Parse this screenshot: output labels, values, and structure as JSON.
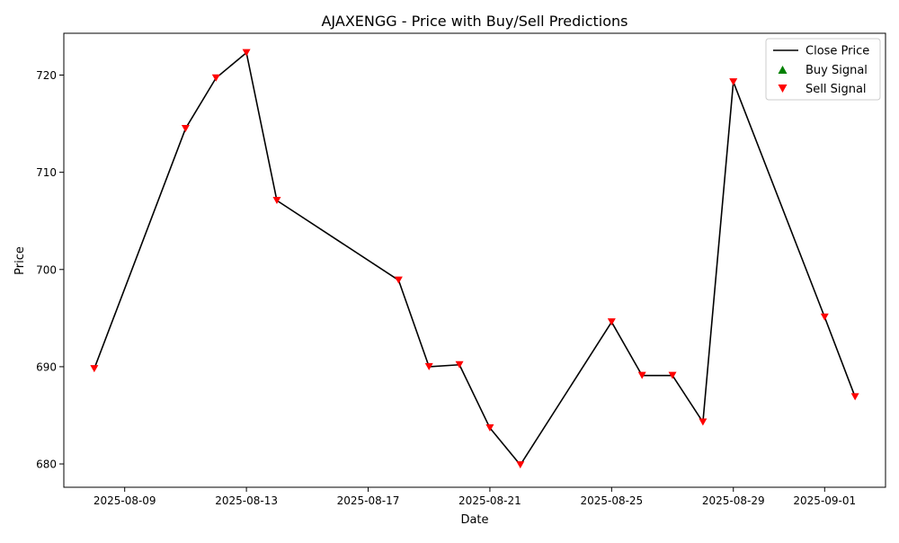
{
  "chart_data": {
    "type": "line",
    "title": "AJAXENGG - Price with Buy/Sell Predictions",
    "xlabel": "Date",
    "ylabel": "Price",
    "x_ticks": [
      "2025-08-09",
      "2025-08-13",
      "2025-08-17",
      "2025-08-21",
      "2025-08-25",
      "2025-08-29",
      "2025-09-01"
    ],
    "y_ticks": [
      680,
      690,
      700,
      710,
      720
    ],
    "xlim": [
      "2025-08-07",
      "2025-09-03"
    ],
    "ylim": [
      677.6,
      724.3
    ],
    "legend_position": "top-right",
    "series": [
      {
        "name": "Close Price",
        "color": "#000000",
        "points": [
          {
            "x": "2025-08-08",
            "y": 689.8
          },
          {
            "x": "2025-08-11",
            "y": 714.5
          },
          {
            "x": "2025-08-12",
            "y": 719.7
          },
          {
            "x": "2025-08-13",
            "y": 722.3
          },
          {
            "x": "2025-08-14",
            "y": 707.1
          },
          {
            "x": "2025-08-18",
            "y": 698.9
          },
          {
            "x": "2025-08-19",
            "y": 690.0
          },
          {
            "x": "2025-08-20",
            "y": 690.2
          },
          {
            "x": "2025-08-21",
            "y": 683.7
          },
          {
            "x": "2025-08-22",
            "y": 679.9
          },
          {
            "x": "2025-08-25",
            "y": 694.6
          },
          {
            "x": "2025-08-26",
            "y": 689.1
          },
          {
            "x": "2025-08-27",
            "y": 689.1
          },
          {
            "x": "2025-08-28",
            "y": 684.3
          },
          {
            "x": "2025-08-29",
            "y": 719.3
          },
          {
            "x": "2025-09-01",
            "y": 695.1
          },
          {
            "x": "2025-09-02",
            "y": 686.9
          }
        ]
      },
      {
        "name": "Buy Signal",
        "color": "#008000",
        "marker": "triangle-up",
        "points": []
      },
      {
        "name": "Sell Signal",
        "color": "#ff0000",
        "marker": "triangle-down",
        "points": [
          {
            "x": "2025-08-08",
            "y": 689.8
          },
          {
            "x": "2025-08-11",
            "y": 714.5
          },
          {
            "x": "2025-08-12",
            "y": 719.7
          },
          {
            "x": "2025-08-13",
            "y": 722.3
          },
          {
            "x": "2025-08-14",
            "y": 707.1
          },
          {
            "x": "2025-08-18",
            "y": 698.9
          },
          {
            "x": "2025-08-19",
            "y": 690.0
          },
          {
            "x": "2025-08-20",
            "y": 690.2
          },
          {
            "x": "2025-08-21",
            "y": 683.7
          },
          {
            "x": "2025-08-22",
            "y": 679.9
          },
          {
            "x": "2025-08-25",
            "y": 694.6
          },
          {
            "x": "2025-08-26",
            "y": 689.1
          },
          {
            "x": "2025-08-27",
            "y": 689.1
          },
          {
            "x": "2025-08-28",
            "y": 684.3
          },
          {
            "x": "2025-08-29",
            "y": 719.3
          },
          {
            "x": "2025-09-01",
            "y": 695.1
          },
          {
            "x": "2025-09-02",
            "y": 686.9
          }
        ]
      }
    ]
  }
}
